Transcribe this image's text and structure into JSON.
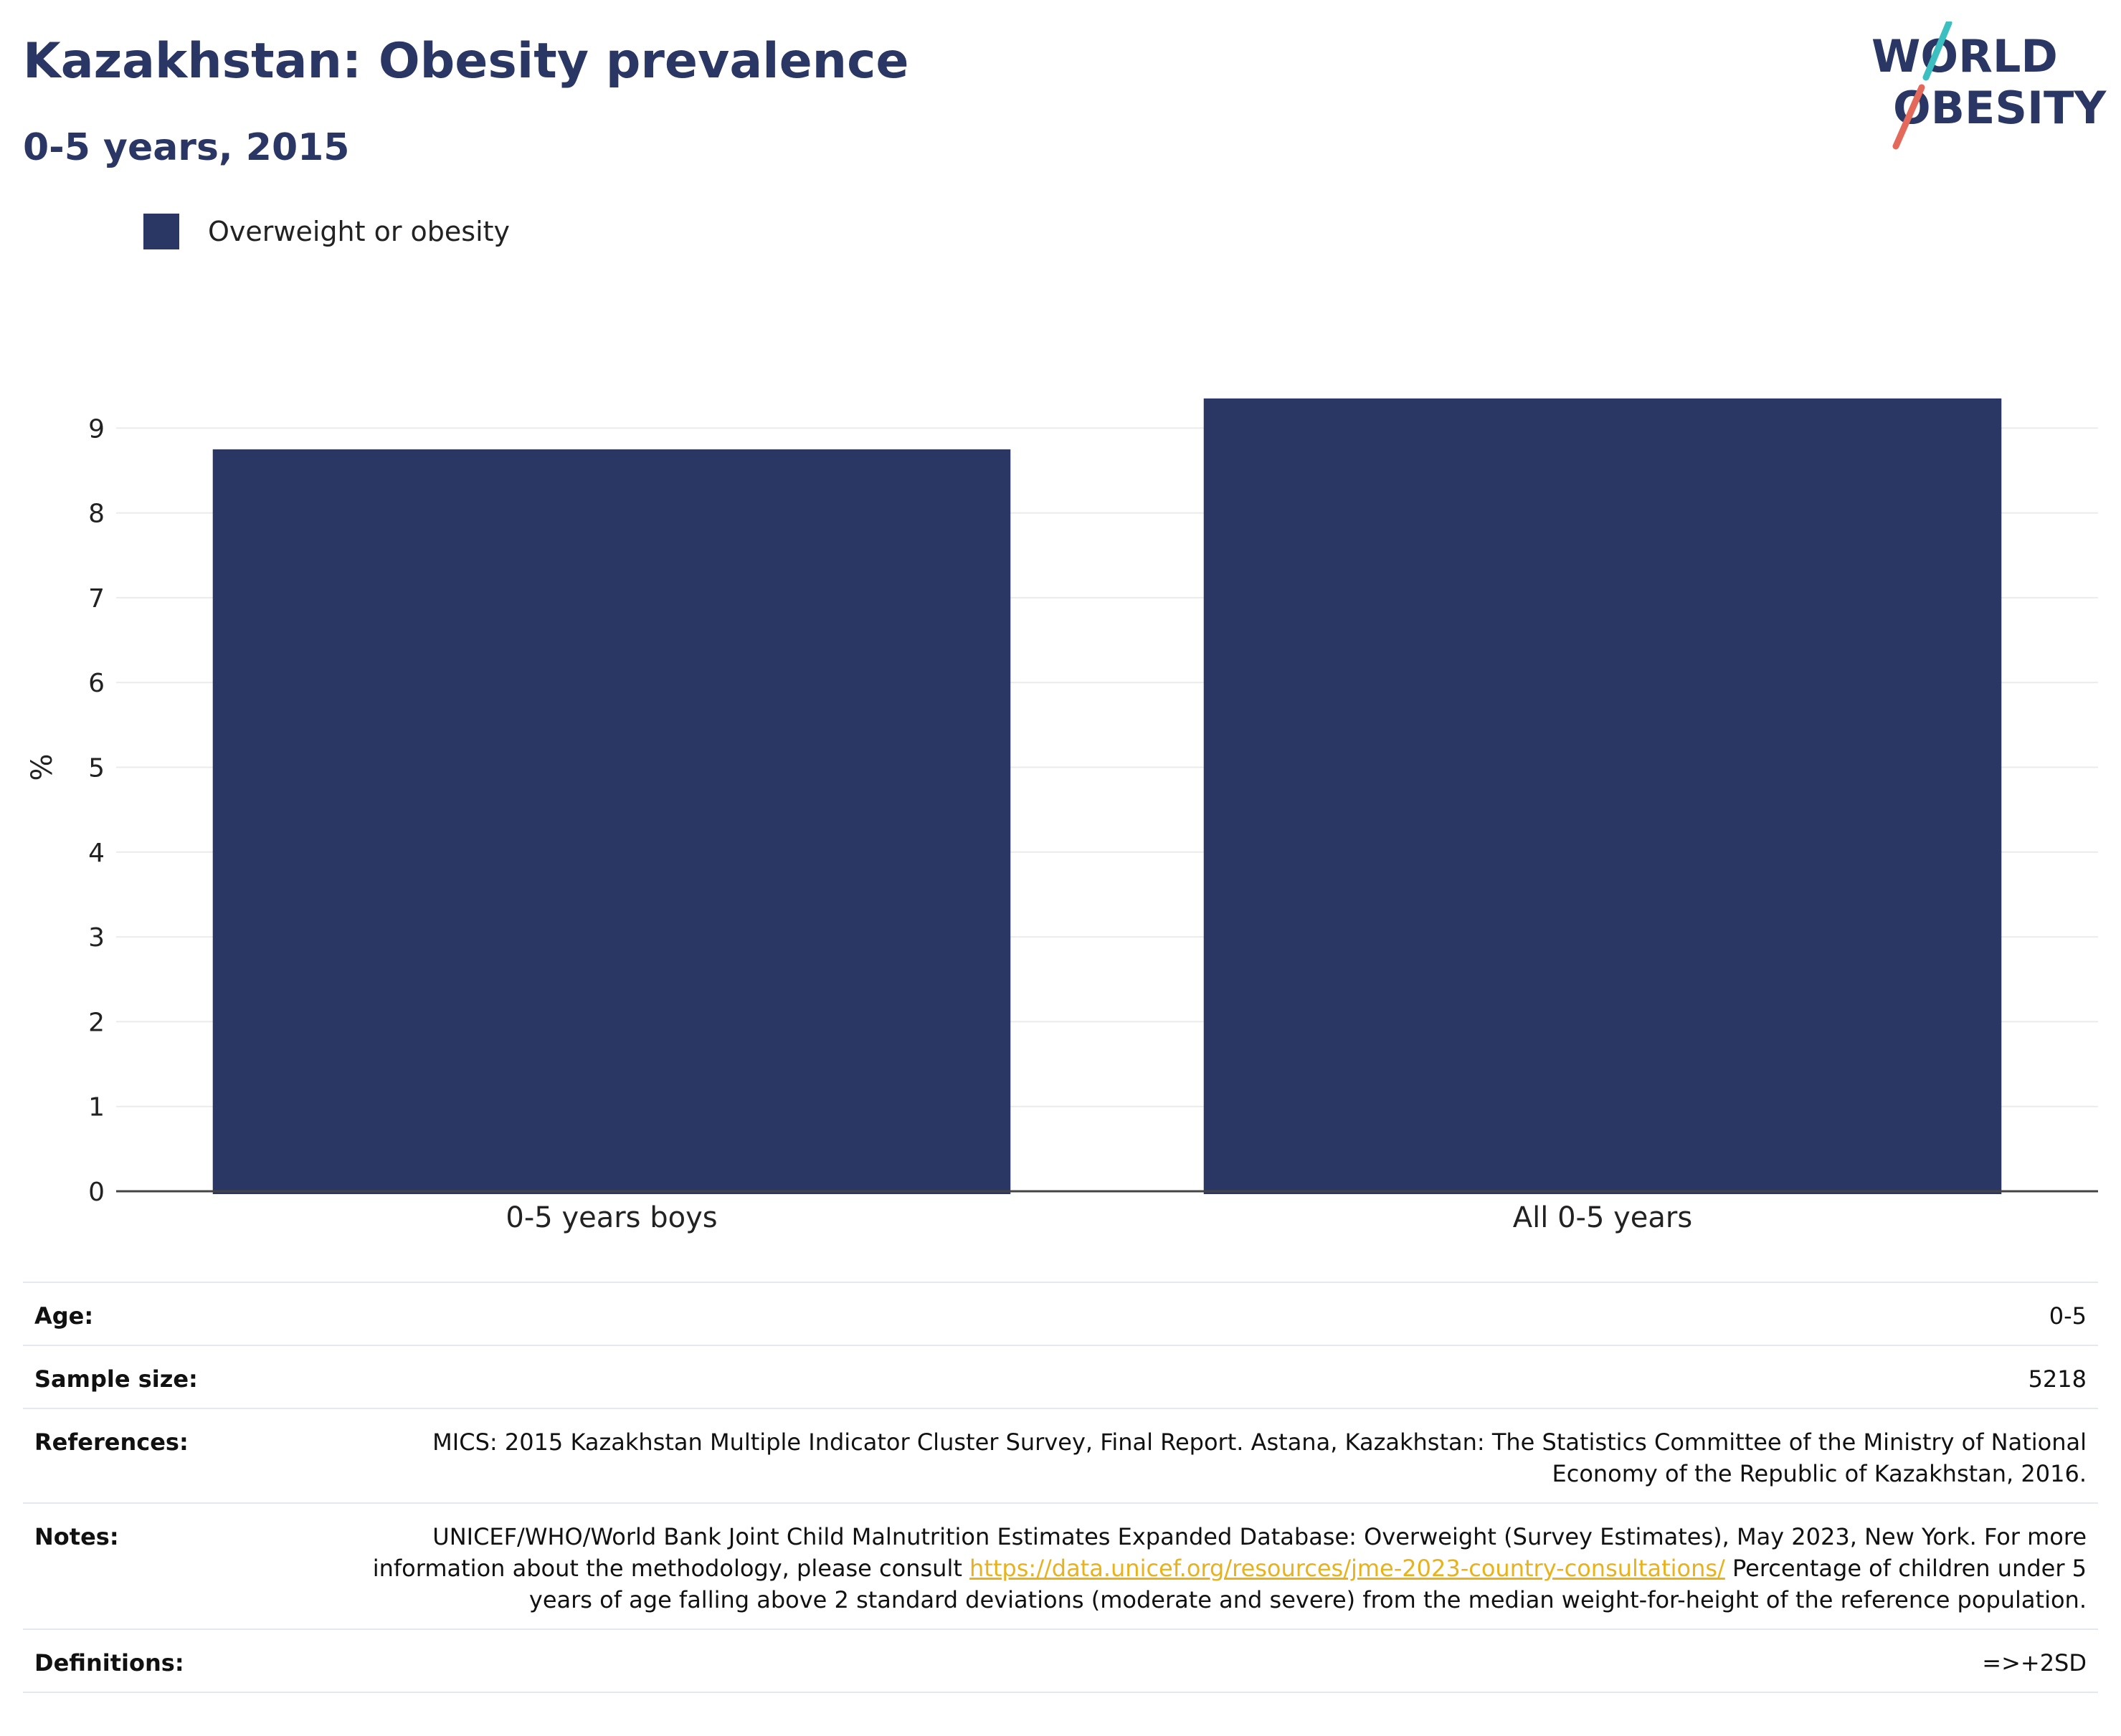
{
  "header": {
    "title": "Kazakhstan: Obesity prevalence",
    "subtitle": "0-5 years, 2015"
  },
  "logo": {
    "line1": "WORLD",
    "line2": "OBESITY",
    "colors": {
      "text": "#2a3663",
      "slash_top": "#3bbfc0",
      "slash_bottom": "#e36a5a"
    }
  },
  "legend": {
    "items": [
      {
        "label": "Overweight or obesity",
        "color": "#2a3663"
      }
    ]
  },
  "chart_data": {
    "type": "bar",
    "title": "Kazakhstan: Obesity prevalence",
    "subtitle": "0-5 years, 2015",
    "categories": [
      "0-5 years boys",
      "All 0-5 years"
    ],
    "series": [
      {
        "name": "Overweight or obesity",
        "values": [
          8.75,
          9.35
        ],
        "color": "#2a3663"
      }
    ],
    "xlabel": "",
    "ylabel": "%",
    "ylim": [
      0,
      9.6
    ],
    "yticks": [
      0,
      1,
      2,
      3,
      4,
      5,
      6,
      7,
      8,
      9
    ],
    "grid": true,
    "legend_position": "top-left"
  },
  "info": {
    "age": {
      "label": "Age:",
      "value": "0-5"
    },
    "sample_size": {
      "label": "Sample size:",
      "value": "5218"
    },
    "references": {
      "label": "References:",
      "value": "MICS: 2015 Kazakhstan Multiple Indicator Cluster Survey, Final Report. Astana, Kazakhstan: The Statistics Committee of the Ministry of National Economy of the Republic of Kazakhstan, 2016."
    },
    "notes": {
      "label": "Notes:",
      "text_before": "UNICEF/WHO/World Bank Joint Child Malnutrition Estimates Expanded Database: Overweight (Survey Estimates), May 2023, New York. For more information about the methodology, please consult ",
      "link": "https://data.unicef.org/resources/jme-2023-country-consultations/",
      "text_after": "Percentage of children under 5 years of age falling above 2 standard deviations (moderate and severe) from the median weight-for-height of the reference population."
    },
    "definitions": {
      "label": "Definitions:",
      "value": "=>+2SD"
    }
  }
}
